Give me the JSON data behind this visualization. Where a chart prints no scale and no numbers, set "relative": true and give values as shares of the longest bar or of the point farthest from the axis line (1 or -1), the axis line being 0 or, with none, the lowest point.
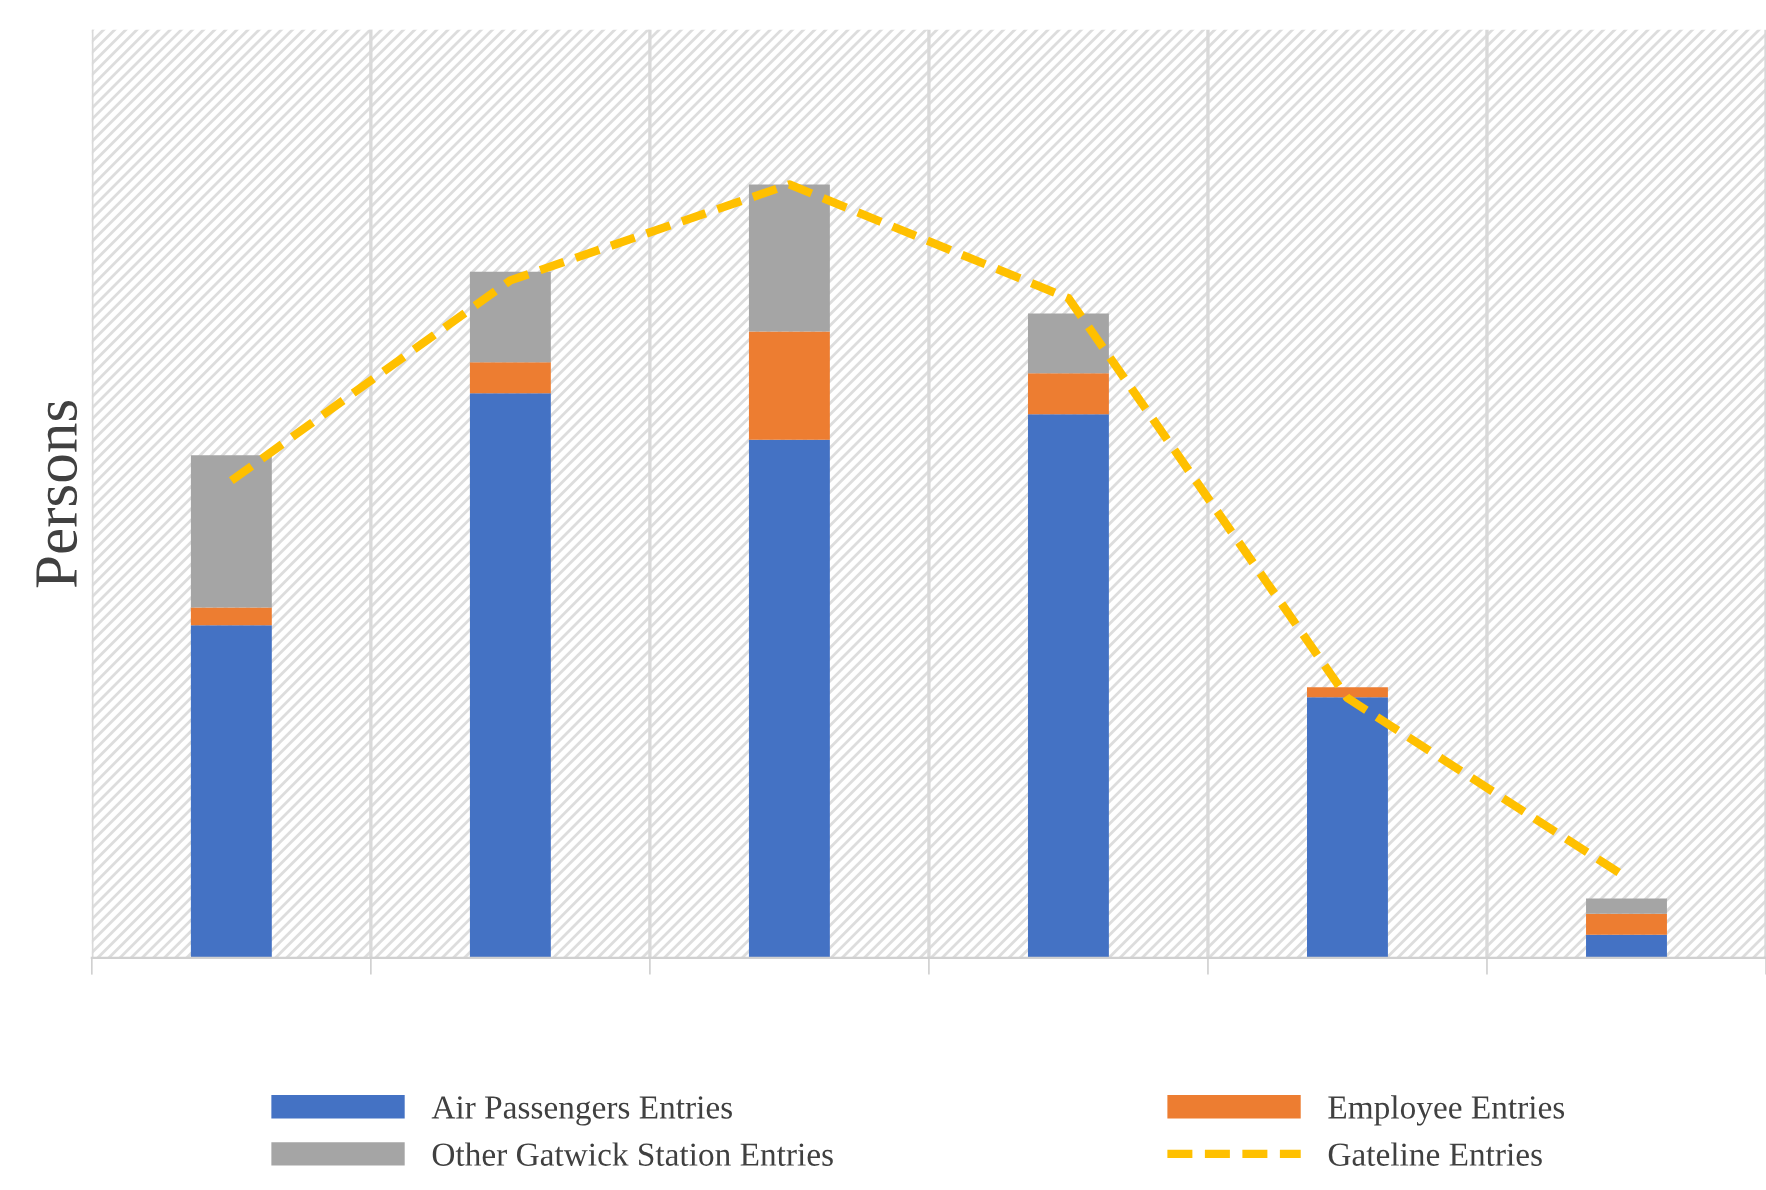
{
  "chart_data": [
    {
      "type": "bar",
      "stacked": true,
      "relative": true,
      "ylabel": "Persons",
      "categories": [
        null,
        null,
        null,
        null,
        null,
        null
      ],
      "series": [
        {
          "name": "Air Passengers Entries",
          "color": "#4472c4",
          "values": [
            0.43,
            0.73,
            0.67,
            0.703,
            0.337,
            0.03
          ]
        },
        {
          "name": "Employee Entries",
          "color": "#ed7d31",
          "values": [
            0.023,
            0.04,
            0.14,
            0.053,
            0.013,
            0.027
          ]
        },
        {
          "name": "Other Gatwick Station Entries",
          "color": "#a5a5a5",
          "values": [
            0.197,
            0.117,
            0.19,
            0.077,
            null,
            0.02
          ]
        }
      ],
      "grid": "x",
      "legend": "bottom"
    },
    {
      "type": "line",
      "relative": true,
      "categories": [
        null,
        null,
        null,
        null,
        null,
        null
      ],
      "line_style": "dashed",
      "marker": "none",
      "series": [
        {
          "name": "Gateline Entries",
          "color": "#ffc000",
          "values": [
            0.617,
            0.876,
            1,
            0.853,
            0.336,
            0.104
          ]
        }
      ],
      "legend": "bottom"
    }
  ]
}
